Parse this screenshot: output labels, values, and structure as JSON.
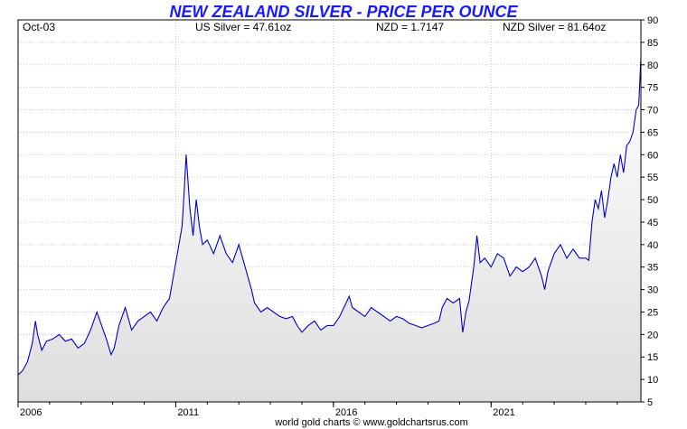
{
  "chart_data": {
    "type": "area",
    "title": "NEW ZEALAND SILVER - PRICE PER OUNCE",
    "info": {
      "date": "Oct-03",
      "us_silver": "US Silver = 47.61oz",
      "nzd": "NZD = 1.7147",
      "nzd_silver": "NZD Silver = 81.64oz"
    },
    "footer": "world gold charts © www.goldchartsrus.com",
    "ylim": [
      5,
      90
    ],
    "y_ticks": [
      5,
      10,
      15,
      20,
      25,
      30,
      35,
      40,
      45,
      50,
      55,
      60,
      65,
      70,
      75,
      80,
      85,
      90
    ],
    "xlim": [
      2006.0,
      2025.75
    ],
    "x_ticks": [
      {
        "value": 2006,
        "label": "2006"
      },
      {
        "value": 2011,
        "label": "2011"
      },
      {
        "value": 2016,
        "label": "2016"
      },
      {
        "value": 2021,
        "label": "2021"
      }
    ],
    "grid": true,
    "line_color": "#0000cc",
    "fill_top": "#ffffff",
    "fill_bottom": "#dedede",
    "series": [
      {
        "x": [
          2006.0,
          2006.15,
          2006.3,
          2006.45,
          2006.55,
          2006.62,
          2006.75,
          2006.9,
          2007.1,
          2007.3,
          2007.5,
          2007.7,
          2007.9,
          2008.1,
          2008.3,
          2008.5,
          2008.65,
          2008.8,
          2008.95,
          2009.05,
          2009.2,
          2009.4,
          2009.6,
          2009.8,
          2010.0,
          2010.2,
          2010.4,
          2010.6,
          2010.8,
          2010.95,
          2011.1,
          2011.2,
          2011.27,
          2011.33,
          2011.45,
          2011.55,
          2011.65,
          2011.75,
          2011.85,
          2012.0,
          2012.2,
          2012.4,
          2012.6,
          2012.8,
          2013.0,
          2013.2,
          2013.4,
          2013.5,
          2013.7,
          2013.9,
          2014.1,
          2014.3,
          2014.5,
          2014.7,
          2014.85,
          2015.0,
          2015.2,
          2015.4,
          2015.6,
          2015.8,
          2016.0,
          2016.2,
          2016.4,
          2016.5,
          2016.6,
          2016.8,
          2017.0,
          2017.2,
          2017.4,
          2017.6,
          2017.8,
          2018.0,
          2018.2,
          2018.4,
          2018.6,
          2018.8,
          2019.0,
          2019.2,
          2019.35,
          2019.45,
          2019.6,
          2019.8,
          2020.0,
          2020.1,
          2020.2,
          2020.3,
          2020.45,
          2020.55,
          2020.65,
          2020.8,
          2021.0,
          2021.2,
          2021.4,
          2021.6,
          2021.8,
          2022.0,
          2022.2,
          2022.4,
          2022.6,
          2022.7,
          2022.8,
          2023.0,
          2023.2,
          2023.4,
          2023.6,
          2023.8,
          2024.0,
          2024.1,
          2024.2,
          2024.3,
          2024.4,
          2024.5,
          2024.6,
          2024.7,
          2024.8,
          2024.9,
          2025.0,
          2025.1,
          2025.2,
          2025.3,
          2025.4,
          2025.5,
          2025.6,
          2025.68,
          2025.75
        ],
        "y": [
          11.0,
          12.0,
          14.0,
          18.0,
          23.0,
          20.0,
          16.5,
          18.5,
          19.0,
          20.0,
          18.5,
          19.0,
          17.0,
          18.0,
          21.0,
          25.0,
          22.0,
          19.0,
          15.5,
          17.0,
          22.0,
          26.0,
          21.0,
          23.0,
          24.0,
          25.0,
          23.0,
          26.0,
          28.0,
          34.0,
          40.0,
          44.0,
          52.0,
          60.0,
          48.0,
          42.0,
          50.0,
          44.0,
          40.0,
          41.0,
          38.0,
          42.0,
          38.0,
          36.0,
          40.0,
          35.0,
          30.0,
          27.0,
          25.0,
          26.0,
          25.0,
          24.0,
          23.5,
          24.0,
          22.0,
          20.5,
          22.0,
          23.0,
          21.0,
          22.0,
          22.0,
          24.0,
          27.0,
          28.5,
          26.0,
          25.0,
          24.0,
          26.0,
          25.0,
          24.0,
          23.0,
          24.0,
          23.5,
          22.5,
          22.0,
          21.5,
          22.0,
          22.5,
          23.0,
          26.0,
          28.0,
          27.0,
          28.0,
          20.5,
          25.0,
          27.5,
          35.0,
          42.0,
          36.0,
          37.0,
          35.0,
          38.0,
          37.0,
          33.0,
          35.0,
          34.0,
          35.0,
          37.0,
          33.0,
          30.0,
          34.0,
          38.0,
          40.0,
          37.0,
          39.0,
          37.0,
          37.0,
          36.5,
          45.0,
          50.0,
          48.0,
          52.0,
          46.0,
          50.0,
          55.0,
          58.0,
          55.0,
          60.0,
          56.0,
          62.0,
          63.0,
          65.0,
          70.0,
          71.0,
          81.64
        ]
      }
    ]
  }
}
